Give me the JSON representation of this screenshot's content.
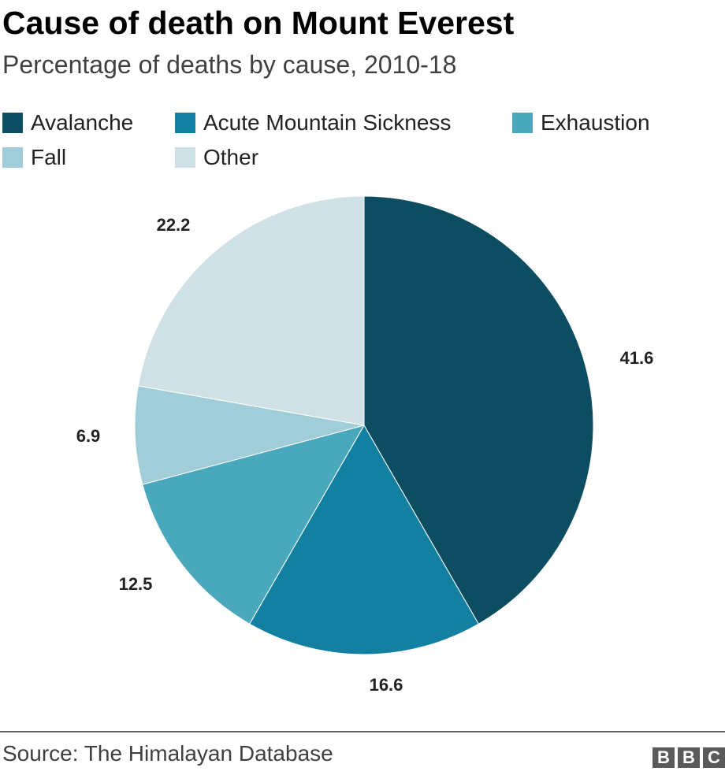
{
  "chart_data": {
    "type": "pie",
    "title": "Cause of death on Mount Everest",
    "subtitle": "Percentage of deaths by cause, 2010-18",
    "slices": [
      {
        "label": "Avalanche",
        "value": 41.6,
        "display": "41.6",
        "color": "#0c4d61"
      },
      {
        "label": "Acute Mountain Sickness",
        "value": 16.6,
        "display": "16.6",
        "color": "#1380a1"
      },
      {
        "label": "Exhaustion",
        "value": 12.5,
        "display": "12.5",
        "color": "#4aa8bc"
      },
      {
        "label": "Fall",
        "value": 6.9,
        "display": "6.9",
        "color": "#a1cdd9"
      },
      {
        "label": "Other",
        "value": 22.2,
        "display": "22.2",
        "color": "#d0e1e5"
      }
    ],
    "start": "top",
    "direction": "clockwise",
    "legend_position": "top-left"
  },
  "footer": {
    "source": "Source: The Himalayan Database",
    "logo": [
      "B",
      "B",
      "C"
    ]
  }
}
